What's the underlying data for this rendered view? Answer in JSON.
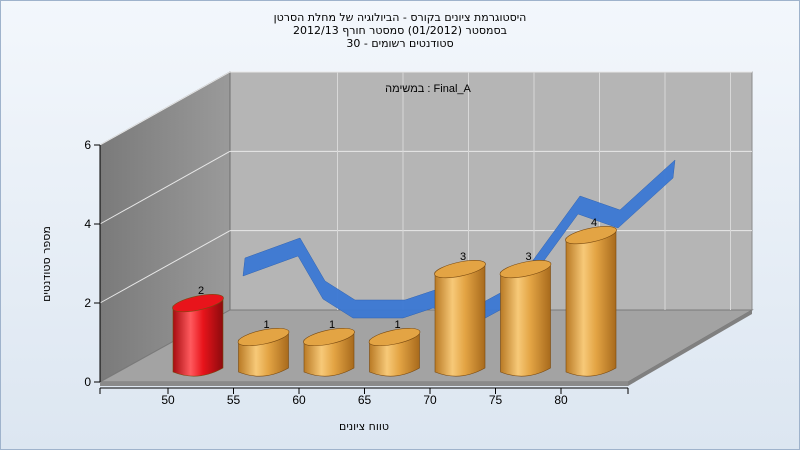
{
  "title_lines": [
    "היסטוגרמת ציונים בקורס - הביולוגיה של מחלת הסרטן",
    "בסמסטר  (01/2012)  סמסטר חורף 2012/13",
    "סטודנטים רשומים - 30"
  ],
  "chart_data": {
    "type": "bar",
    "title": "היסטוגרמת ציונים בקורס - הביולוגיה של מחלת הסרטן",
    "inner_label": "במשימה : Final_A",
    "xlabel": "טווח ציונים",
    "ylabel": "מספר סטודנטים",
    "ylim": [
      0,
      6
    ],
    "yticks": [
      0,
      2,
      4,
      6
    ],
    "xticks": [
      "50",
      "55",
      "60",
      "65",
      "70",
      "75",
      "80"
    ],
    "categories": [
      "<55",
      "55-60",
      "60-65",
      "65-70",
      "70-75",
      "75-80",
      "80+"
    ],
    "values": [
      2,
      1,
      1,
      1,
      3,
      3,
      4
    ],
    "bar_colors": [
      "#e8141b",
      "#e3a444",
      "#e3a444",
      "#e3a444",
      "#e3a444",
      "#e3a444",
      "#e3a444"
    ],
    "trend_values": [
      2.5,
      1.7,
      1.8,
      1.8,
      2.5,
      3.8,
      4.2
    ],
    "trend_color": "#3b78d4",
    "grid": true
  }
}
